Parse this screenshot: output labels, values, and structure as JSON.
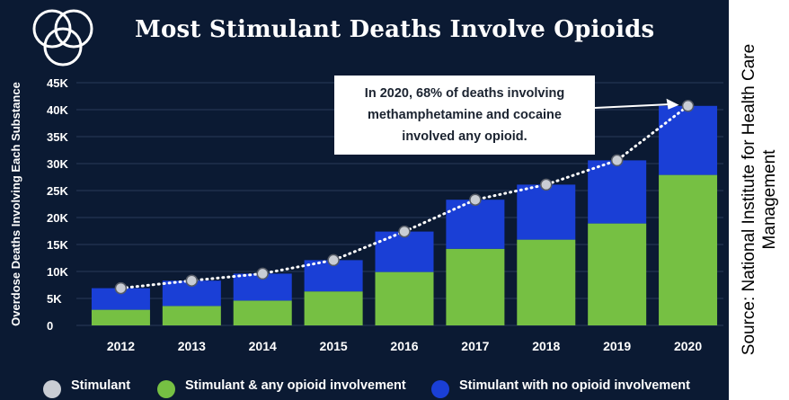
{
  "title": "Most Stimulant Deaths Involve Opioids",
  "source": "Source: National Institute for Health Care Management",
  "annotation": {
    "line1": "In 2020, 68% of deaths involving",
    "line2": "methamphetamine and cocaine",
    "line3": "involved any opioid."
  },
  "legend": {
    "stimulant": "Stimulant",
    "opioid": "Stimulant & any opioid involvement",
    "no_opioid": "Stimulant with no opioid involvement"
  },
  "colors": {
    "background": "#0b1a33",
    "opioid": "#76c043",
    "no_opioid": "#1a3fd6",
    "stimulant_marker": "#c9cdd4",
    "annotation_bg": "#ffffff"
  },
  "chart_data": {
    "type": "bar",
    "stacked": true,
    "title": "Most Stimulant Deaths Involve Opioids",
    "ylabel": "Overdose Deaths Involving Each Substance",
    "xlabel": "",
    "categories": [
      "2012",
      "2013",
      "2014",
      "2015",
      "2016",
      "2017",
      "2018",
      "2019",
      "2020"
    ],
    "y_tick_labels": [
      "0",
      "5K",
      "10K",
      "15K",
      "20K",
      "25K",
      "30K",
      "35K",
      "40K",
      "45K"
    ],
    "ylim": [
      0,
      45000
    ],
    "grid": true,
    "legend_position": "bottom",
    "series": [
      {
        "name": "Stimulant & any opioid involvement",
        "color": "#76c043",
        "values": [
          2900,
          3600,
          4600,
          6300,
          9900,
          14200,
          15900,
          18900,
          27900
        ]
      },
      {
        "name": "Stimulant with no opioid involvement",
        "color": "#1a3fd6",
        "values": [
          4000,
          4700,
          5000,
          5800,
          7500,
          9100,
          10200,
          11700,
          12800
        ]
      },
      {
        "name": "Stimulant",
        "type": "line",
        "color": "#c9cdd4",
        "values": [
          6900,
          8300,
          9600,
          12100,
          17400,
          23300,
          26100,
          30600,
          40700
        ]
      }
    ],
    "annotations": [
      "In 2020, 68% of deaths involving methamphetamine and cocaine involved any opioid."
    ]
  }
}
